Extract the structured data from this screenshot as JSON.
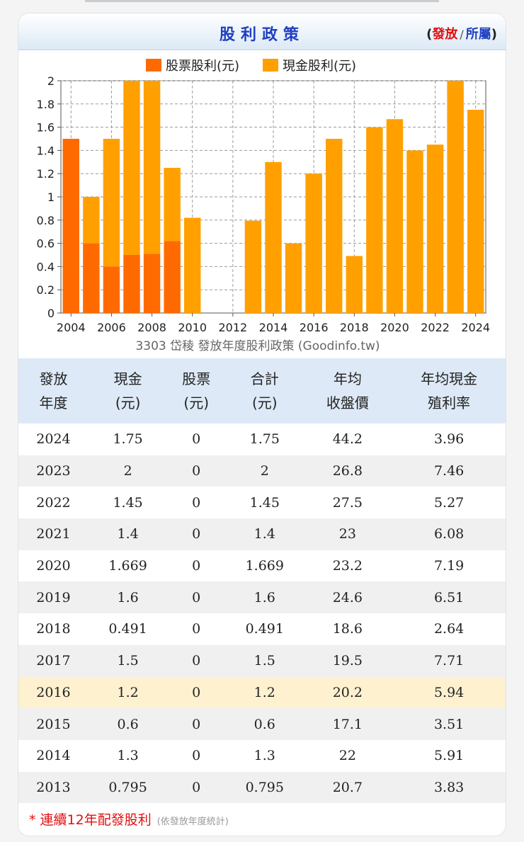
{
  "header": {
    "title": "股利政策",
    "paren_open": "(",
    "paren_close": ")",
    "active_option": "發放",
    "separator": "/",
    "other_option": "所屬"
  },
  "colors": {
    "stock": "#ff6a00",
    "cash": "#ffa000",
    "title_blue": "#2040c0",
    "accent_red": "#e01010"
  },
  "chart_data": {
    "type": "bar",
    "stacked": true,
    "title": "3303 岱稜 發放年度股利政策 (Goodinfo.tw)",
    "legend_position": "top",
    "ylim": [
      0,
      2
    ],
    "yticks": [
      0,
      0.2,
      0.4,
      0.6,
      0.8,
      1,
      1.2,
      1.4,
      1.6,
      1.8,
      2
    ],
    "xtick_labels": [
      "2004",
      "2006",
      "2008",
      "2010",
      "2012",
      "2014",
      "2016",
      "2018",
      "2020",
      "2022",
      "2024"
    ],
    "categories": [
      "2004",
      "2005",
      "2006",
      "2007",
      "2008",
      "2009",
      "2010",
      "2011",
      "2012",
      "2013",
      "2014",
      "2015",
      "2016",
      "2017",
      "2018",
      "2019",
      "2020",
      "2021",
      "2022",
      "2023",
      "2024"
    ],
    "grid": true,
    "series": [
      {
        "name": "股票股利(元)",
        "values": [
          1.5,
          0.6,
          0.4,
          0.5,
          0.51,
          0.62,
          0,
          0,
          0,
          0,
          0,
          0,
          0,
          0,
          0,
          0,
          0,
          0,
          0,
          0,
          0
        ]
      },
      {
        "name": "現金股利(元)",
        "values": [
          0,
          0.4,
          1.1,
          1.5,
          1.55,
          0.63,
          0.82,
          0,
          0,
          0.795,
          1.3,
          0.6,
          1.2,
          1.5,
          0.491,
          1.6,
          1.669,
          1.4,
          1.45,
          2,
          1.75
        ]
      }
    ]
  },
  "table": {
    "headers": [
      [
        "發放",
        "年度"
      ],
      [
        "現金",
        "(元)"
      ],
      [
        "股票",
        "(元)"
      ],
      [
        "合計",
        "(元)"
      ],
      [
        "年均",
        "收盤價"
      ],
      [
        "年均現金",
        "殖利率"
      ]
    ],
    "rows": [
      [
        "2024",
        "1.75",
        "0",
        "1.75",
        "44.2",
        "3.96"
      ],
      [
        "2023",
        "2",
        "0",
        "2",
        "26.8",
        "7.46"
      ],
      [
        "2022",
        "1.45",
        "0",
        "1.45",
        "27.5",
        "5.27"
      ],
      [
        "2021",
        "1.4",
        "0",
        "1.4",
        "23",
        "6.08"
      ],
      [
        "2020",
        "1.669",
        "0",
        "1.669",
        "23.2",
        "7.19"
      ],
      [
        "2019",
        "1.6",
        "0",
        "1.6",
        "24.6",
        "6.51"
      ],
      [
        "2018",
        "0.491",
        "0",
        "0.491",
        "18.6",
        "2.64"
      ],
      [
        "2017",
        "1.5",
        "0",
        "1.5",
        "19.5",
        "7.71"
      ],
      [
        "2016",
        "1.2",
        "0",
        "1.2",
        "20.2",
        "5.94"
      ],
      [
        "2015",
        "0.6",
        "0",
        "0.6",
        "17.1",
        "3.51"
      ],
      [
        "2014",
        "1.3",
        "0",
        "1.3",
        "22",
        "5.91"
      ],
      [
        "2013",
        "0.795",
        "0",
        "0.795",
        "20.7",
        "3.83"
      ]
    ],
    "highlight_year": "2016"
  },
  "footnote": {
    "main": "* 連續12年配發股利",
    "sub": "(依發放年度統計)"
  }
}
